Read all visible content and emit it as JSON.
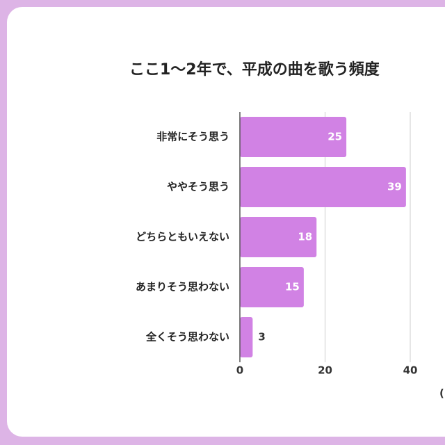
{
  "chart_data": {
    "type": "barh",
    "title": "ここ1〜2年で、平成の曲を歌う頻度",
    "categories": [
      "非常にそう思う",
      "ややそう思う",
      "どちらともいえない",
      "あまりそう思わない",
      "全くそう思わない"
    ],
    "values": [
      25,
      39,
      18,
      15,
      3
    ],
    "color": "#d182e4",
    "xlim": [
      0,
      40
    ],
    "xticks": [
      0,
      20,
      40
    ],
    "grid": true,
    "note": "("
  }
}
